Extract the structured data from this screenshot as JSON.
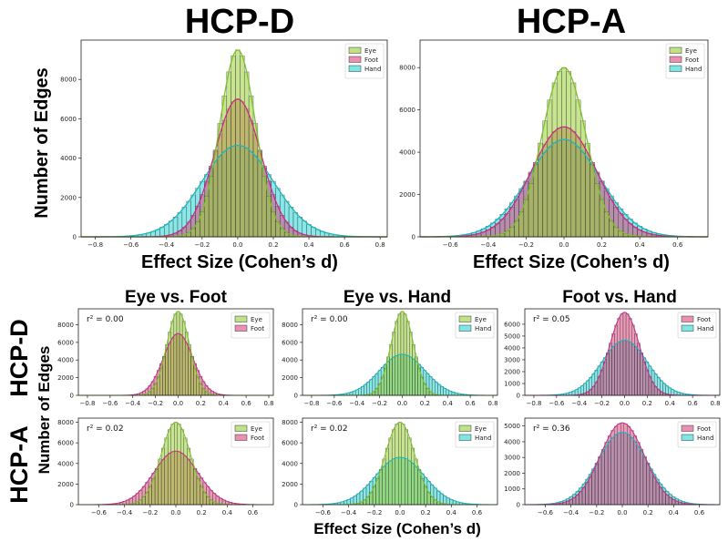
{
  "figure": {
    "titles": {
      "left": "HCP-D",
      "right": "HCP-A"
    },
    "ylabel_top": "Number of Edges",
    "xlabel_top": "Effect Size (Cohen’s d)",
    "xlabel_bottom": "Effect Size (Cohen’s d)",
    "ylabel_bottom": "Number of Edges",
    "row_labels": {
      "d": "HCP-D",
      "a": "HCP-A"
    },
    "column_titles": [
      "Eye vs. Foot",
      "Eye vs. Hand",
      "Foot vs. Hand"
    ]
  },
  "colors": {
    "Eye": "#9acd32",
    "Foot": "#e0457b",
    "Hand": "#2ad4d4",
    "EyeLine": "#7cc02a",
    "FootLine": "#cc2a8a",
    "HandLine": "#1ab8c0"
  },
  "chart_data": [
    {
      "id": "top-d",
      "type": "bar",
      "title": "HCP-D",
      "xlabel": "Effect Size (Cohen’s d)",
      "ylabel": "Number of Edges",
      "xlim": [
        -0.88,
        0.84
      ],
      "ylim": [
        0,
        10000
      ],
      "xticks": [
        -0.8,
        -0.6,
        -0.4,
        -0.2,
        0.0,
        0.2,
        0.4,
        0.6,
        0.8
      ],
      "yticks": [
        0,
        2000,
        4000,
        6000,
        8000
      ],
      "legend": "top-right",
      "bin_width": 0.025,
      "series": [
        {
          "name": "Eye",
          "peak": 9500,
          "mean": 0.0,
          "sd": 0.1
        },
        {
          "name": "Foot",
          "peak": 7000,
          "mean": 0.0,
          "sd": 0.13
        },
        {
          "name": "Hand",
          "peak": 4650,
          "mean": 0.0,
          "sd": 0.2
        }
      ]
    },
    {
      "id": "top-a",
      "type": "bar",
      "title": "HCP-A",
      "xlabel": "Effect Size (Cohen’s d)",
      "ylabel": "Number of Edges",
      "xlim": [
        -0.76,
        0.76
      ],
      "ylim": [
        0,
        9300
      ],
      "xticks": [
        -0.6,
        -0.4,
        -0.2,
        0.0,
        0.2,
        0.4,
        0.6
      ],
      "yticks": [
        0,
        2000,
        4000,
        6000,
        8000
      ],
      "legend": "top-right",
      "bin_width": 0.025,
      "series": [
        {
          "name": "Eye",
          "peak": 8000,
          "mean": 0.0,
          "sd": 0.115
        },
        {
          "name": "Foot",
          "peak": 5200,
          "mean": 0.0,
          "sd": 0.17
        },
        {
          "name": "Hand",
          "peak": 4600,
          "mean": 0.0,
          "sd": 0.19
        }
      ]
    },
    {
      "id": "d-eye-foot",
      "type": "bar",
      "title": "Eye vs. Foot",
      "annotation": "r² = 0.00",
      "xlim": [
        -0.88,
        0.84
      ],
      "ylim": [
        0,
        9800
      ],
      "xticks": [
        -0.8,
        -0.6,
        -0.4,
        -0.2,
        0.0,
        0.2,
        0.4,
        0.6,
        0.8
      ],
      "yticks": [
        0,
        2000,
        4000,
        6000,
        8000
      ],
      "legend": "top-right",
      "bin_width": 0.025,
      "series": [
        {
          "name": "Eye",
          "peak": 9500,
          "mean": 0.0,
          "sd": 0.1
        },
        {
          "name": "Foot",
          "peak": 7000,
          "mean": 0.0,
          "sd": 0.13
        }
      ]
    },
    {
      "id": "d-eye-hand",
      "type": "bar",
      "title": "Eye vs. Hand",
      "annotation": "r² = 0.00",
      "xlim": [
        -0.88,
        0.84
      ],
      "ylim": [
        0,
        9800
      ],
      "xticks": [
        -0.8,
        -0.6,
        -0.4,
        -0.2,
        0.0,
        0.2,
        0.4,
        0.6,
        0.8
      ],
      "yticks": [
        0,
        2000,
        4000,
        6000,
        8000
      ],
      "legend": "top-right",
      "bin_width": 0.025,
      "series": [
        {
          "name": "Eye",
          "peak": 9500,
          "mean": 0.0,
          "sd": 0.1
        },
        {
          "name": "Hand",
          "peak": 4650,
          "mean": 0.0,
          "sd": 0.2
        }
      ]
    },
    {
      "id": "d-foot-hand",
      "type": "bar",
      "title": "Foot vs. Hand",
      "annotation": "r² = 0.05",
      "xlim": [
        -0.88,
        0.84
      ],
      "ylim": [
        0,
        7300
      ],
      "xticks": [
        -0.8,
        -0.6,
        -0.4,
        -0.2,
        0.0,
        0.2,
        0.4,
        0.6,
        0.8
      ],
      "yticks": [
        0,
        1000,
        2000,
        3000,
        4000,
        5000,
        6000
      ],
      "legend": "top-right",
      "bin_width": 0.025,
      "series": [
        {
          "name": "Foot",
          "peak": 7000,
          "mean": 0.0,
          "sd": 0.13
        },
        {
          "name": "Hand",
          "peak": 4650,
          "mean": 0.0,
          "sd": 0.2
        }
      ]
    },
    {
      "id": "a-eye-foot",
      "type": "bar",
      "annotation": "r² = 0.02",
      "xlim": [
        -0.76,
        0.76
      ],
      "ylim": [
        0,
        8400
      ],
      "xticks": [
        -0.6,
        -0.4,
        -0.2,
        0.0,
        0.2,
        0.4,
        0.6
      ],
      "yticks": [
        0,
        2000,
        4000,
        6000,
        8000
      ],
      "legend": "top-right",
      "bin_width": 0.025,
      "series": [
        {
          "name": "Eye",
          "peak": 8000,
          "mean": 0.0,
          "sd": 0.115
        },
        {
          "name": "Foot",
          "peak": 5200,
          "mean": 0.0,
          "sd": 0.17
        }
      ]
    },
    {
      "id": "a-eye-hand",
      "type": "bar",
      "annotation": "r² = 0.02",
      "xlim": [
        -0.76,
        0.76
      ],
      "ylim": [
        0,
        8400
      ],
      "xticks": [
        -0.6,
        -0.4,
        -0.2,
        0.0,
        0.2,
        0.4,
        0.6
      ],
      "yticks": [
        0,
        2000,
        4000,
        6000,
        8000
      ],
      "legend": "top-right",
      "bin_width": 0.025,
      "series": [
        {
          "name": "Eye",
          "peak": 8000,
          "mean": 0.0,
          "sd": 0.115
        },
        {
          "name": "Hand",
          "peak": 4600,
          "mean": 0.0,
          "sd": 0.19
        }
      ]
    },
    {
      "id": "a-foot-hand",
      "type": "bar",
      "annotation": "r² = 0.36",
      "xlim": [
        -0.76,
        0.76
      ],
      "ylim": [
        0,
        5500
      ],
      "xticks": [
        -0.6,
        -0.4,
        -0.2,
        0.0,
        0.2,
        0.4,
        0.6
      ],
      "yticks": [
        0,
        1000,
        2000,
        3000,
        4000,
        5000
      ],
      "legend": "top-right",
      "bin_width": 0.025,
      "series": [
        {
          "name": "Foot",
          "peak": 5200,
          "mean": 0.0,
          "sd": 0.17
        },
        {
          "name": "Hand",
          "peak": 4600,
          "mean": 0.0,
          "sd": 0.19
        }
      ]
    }
  ]
}
